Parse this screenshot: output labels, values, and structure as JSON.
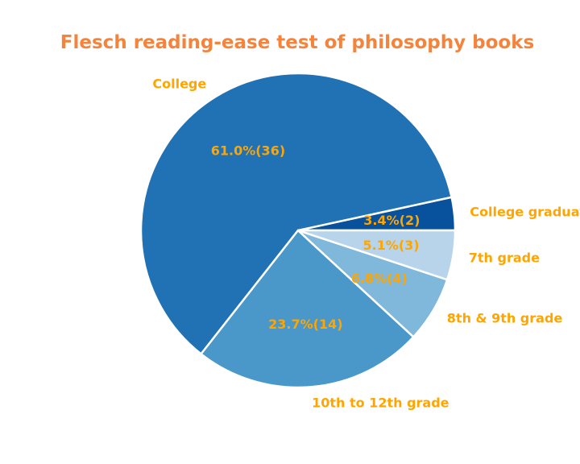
{
  "chart_data": {
    "type": "pie",
    "title": "Flesch reading-ease test of philosophy books",
    "slices": [
      {
        "label": "College graduate",
        "value": 2,
        "percent_label": "3.4%(2)",
        "color": "#08519c"
      },
      {
        "label": "College",
        "value": 36,
        "percent_label": "61.0%(36)",
        "color": "#2171b5"
      },
      {
        "label": "10th to 12th grade",
        "value": 14,
        "percent_label": "23.7%(14)",
        "color": "#4a98c9"
      },
      {
        "label": "8th & 9th grade",
        "value": 4,
        "percent_label": "6.8%(4)",
        "color": "#7fb8da"
      },
      {
        "label": "7th grade",
        "value": 3,
        "percent_label": "5.1%(3)",
        "color": "#b7d4ea"
      }
    ],
    "start_angle_deg": 0,
    "direction": "counterclockwise",
    "label_color": "#ffa500",
    "title_color": "#f4843c",
    "edge_color": "#ffffff"
  }
}
